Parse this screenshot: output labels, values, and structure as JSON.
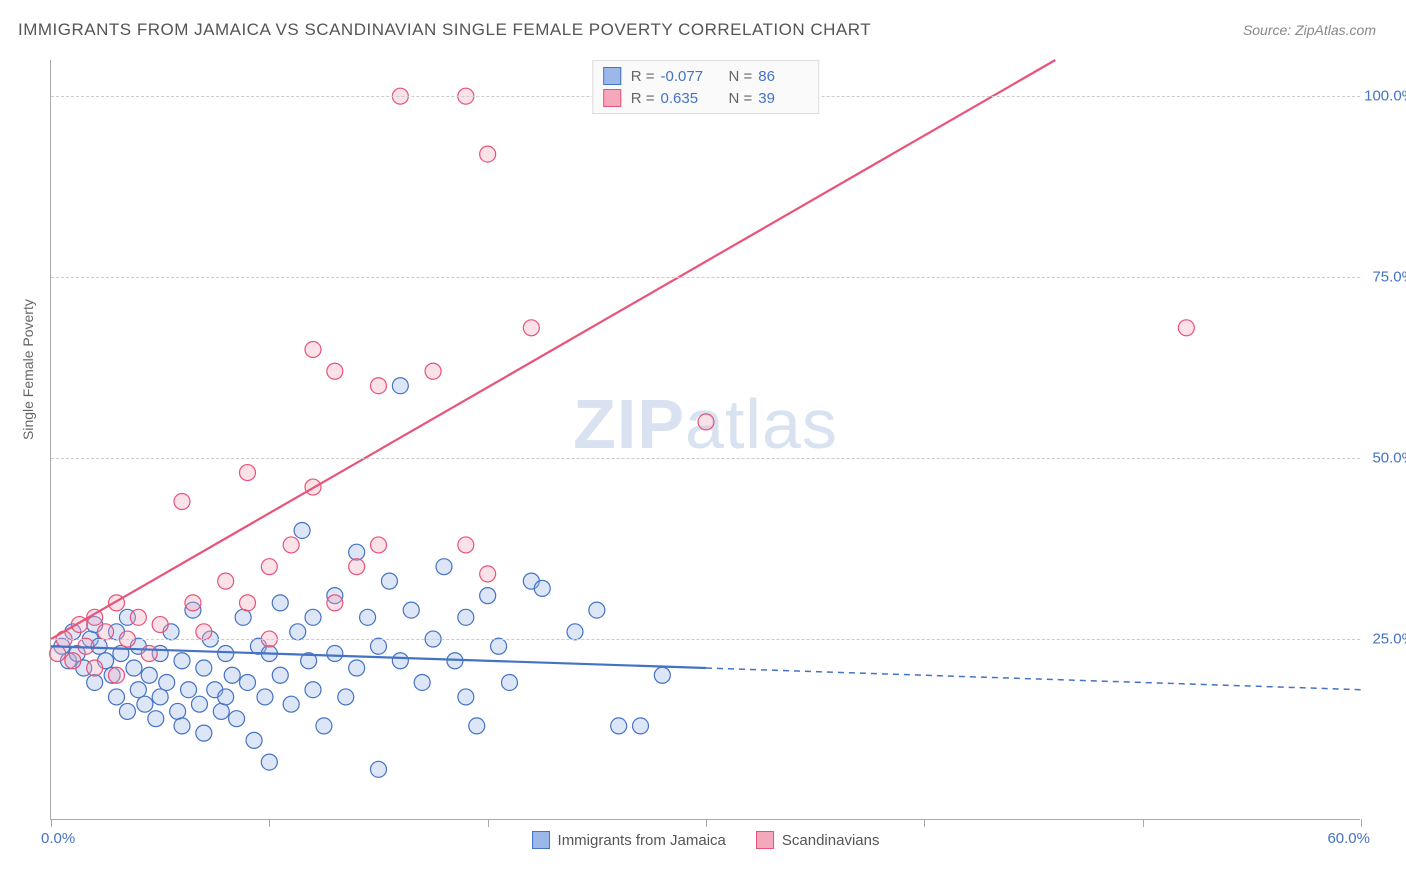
{
  "title": "IMMIGRANTS FROM JAMAICA VS SCANDINAVIAN SINGLE FEMALE POVERTY CORRELATION CHART",
  "source": "Source: ZipAtlas.com",
  "watermark": {
    "bold": "ZIP",
    "rest": "atlas"
  },
  "y_axis_title": "Single Female Poverty",
  "chart": {
    "type": "scatter",
    "xlim": [
      0,
      60
    ],
    "ylim": [
      0,
      105
    ],
    "x_ticks": [
      0,
      10,
      20,
      30,
      40,
      50,
      60
    ],
    "y_gridlines": [
      25,
      50,
      75,
      100
    ],
    "y_labels": [
      {
        "v": 25,
        "t": "25.0%"
      },
      {
        "v": 50,
        "t": "50.0%"
      },
      {
        "v": 75,
        "t": "75.0%"
      },
      {
        "v": 100,
        "t": "100.0%"
      }
    ],
    "x_label_min": "0.0%",
    "x_label_max": "60.0%",
    "background_color": "#ffffff",
    "grid_color": "#cccccc",
    "axis_color": "#aaaaaa",
    "axis_label_color": "#4472c4",
    "point_radius": 8,
    "point_stroke_width": 1.2,
    "point_fill_opacity": 0.35,
    "line_width": 2.2
  },
  "series": [
    {
      "name": "Immigrants from Jamaica",
      "color_stroke": "#4472c4",
      "color_fill": "#9bb8e8",
      "R": "-0.077",
      "N": "86",
      "trend": {
        "x1": 0,
        "y1": 24,
        "x2": 30,
        "y2": 21,
        "x2_dash": 60,
        "y2_dash": 18
      },
      "points": [
        [
          0.5,
          24
        ],
        [
          0.8,
          22
        ],
        [
          1,
          26
        ],
        [
          1.2,
          23
        ],
        [
          1.5,
          21
        ],
        [
          1.8,
          25
        ],
        [
          2,
          19
        ],
        [
          2,
          27
        ],
        [
          2.2,
          24
        ],
        [
          2.5,
          22
        ],
        [
          2.8,
          20
        ],
        [
          3,
          17
        ],
        [
          3,
          26
        ],
        [
          3.2,
          23
        ],
        [
          3.5,
          15
        ],
        [
          3.5,
          28
        ],
        [
          3.8,
          21
        ],
        [
          4,
          18
        ],
        [
          4,
          24
        ],
        [
          4.3,
          16
        ],
        [
          4.5,
          20
        ],
        [
          4.8,
          14
        ],
        [
          5,
          17
        ],
        [
          5,
          23
        ],
        [
          5.3,
          19
        ],
        [
          5.5,
          26
        ],
        [
          5.8,
          15
        ],
        [
          6,
          22
        ],
        [
          6,
          13
        ],
        [
          6.3,
          18
        ],
        [
          6.5,
          29
        ],
        [
          6.8,
          16
        ],
        [
          7,
          21
        ],
        [
          7,
          12
        ],
        [
          7.3,
          25
        ],
        [
          7.5,
          18
        ],
        [
          7.8,
          15
        ],
        [
          8,
          23
        ],
        [
          8,
          17
        ],
        [
          8.3,
          20
        ],
        [
          8.5,
          14
        ],
        [
          8.8,
          28
        ],
        [
          9,
          19
        ],
        [
          9.3,
          11
        ],
        [
          9.5,
          24
        ],
        [
          9.8,
          17
        ],
        [
          10,
          23
        ],
        [
          10,
          8
        ],
        [
          10.5,
          30
        ],
        [
          10.5,
          20
        ],
        [
          11,
          16
        ],
        [
          11.3,
          26
        ],
        [
          11.5,
          40
        ],
        [
          11.8,
          22
        ],
        [
          12,
          28
        ],
        [
          12,
          18
        ],
        [
          12.5,
          13
        ],
        [
          13,
          31
        ],
        [
          13,
          23
        ],
        [
          13.5,
          17
        ],
        [
          14,
          37
        ],
        [
          14,
          21
        ],
        [
          14.5,
          28
        ],
        [
          15,
          7
        ],
        [
          15,
          24
        ],
        [
          15.5,
          33
        ],
        [
          16,
          22
        ],
        [
          16,
          60
        ],
        [
          16.5,
          29
        ],
        [
          17,
          19
        ],
        [
          17.5,
          25
        ],
        [
          18,
          35
        ],
        [
          18.5,
          22
        ],
        [
          19,
          28
        ],
        [
          19,
          17
        ],
        [
          19.5,
          13
        ],
        [
          20,
          31
        ],
        [
          20.5,
          24
        ],
        [
          21,
          19
        ],
        [
          22,
          33
        ],
        [
          22.5,
          32
        ],
        [
          24,
          26
        ],
        [
          25,
          29
        ],
        [
          26,
          13
        ],
        [
          27,
          13
        ],
        [
          28,
          20
        ]
      ]
    },
    {
      "name": "Scandinavians",
      "color_stroke": "#e8537a",
      "color_fill": "#f4a8bc",
      "R": "0.635",
      "N": "39",
      "trend": {
        "x1": 0,
        "y1": 25,
        "x2": 46,
        "y2": 105
      },
      "points": [
        [
          0.3,
          23
        ],
        [
          0.6,
          25
        ],
        [
          1,
          22
        ],
        [
          1.3,
          27
        ],
        [
          1.6,
          24
        ],
        [
          2,
          21
        ],
        [
          2,
          28
        ],
        [
          2.5,
          26
        ],
        [
          3,
          20
        ],
        [
          3,
          30
        ],
        [
          3.5,
          25
        ],
        [
          4,
          28
        ],
        [
          4.5,
          23
        ],
        [
          5,
          27
        ],
        [
          6,
          44
        ],
        [
          6.5,
          30
        ],
        [
          7,
          26
        ],
        [
          8,
          33
        ],
        [
          9,
          48
        ],
        [
          9,
          30
        ],
        [
          10,
          25
        ],
        [
          10,
          35
        ],
        [
          11,
          38
        ],
        [
          12,
          46
        ],
        [
          12,
          65
        ],
        [
          13,
          30
        ],
        [
          13,
          62
        ],
        [
          14,
          35
        ],
        [
          15,
          60
        ],
        [
          15,
          38
        ],
        [
          16,
          100
        ],
        [
          17.5,
          62
        ],
        [
          19,
          38
        ],
        [
          19,
          100
        ],
        [
          20,
          34
        ],
        [
          20,
          92
        ],
        [
          22,
          68
        ],
        [
          30,
          55
        ],
        [
          52,
          68
        ]
      ]
    }
  ],
  "legend_top": {
    "R_label": "R =",
    "N_label": "N ="
  }
}
